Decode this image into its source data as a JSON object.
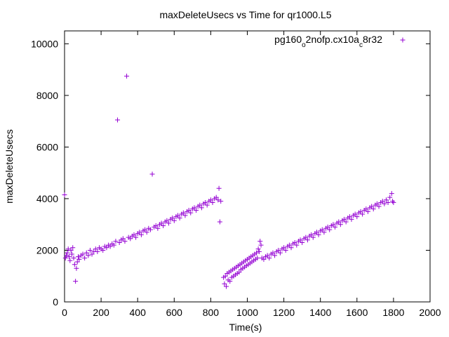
{
  "chart_data": {
    "type": "scatter",
    "title": "maxDeleteUsecs vs Time for qr1000.L5",
    "xlabel": "Time(s)",
    "ylabel": "maxDeleteUsecs",
    "xlim": [
      0,
      2000
    ],
    "ylim": [
      0,
      10500
    ],
    "xticks": [
      0,
      200,
      400,
      600,
      800,
      1000,
      1200,
      1400,
      1600,
      1800,
      2000
    ],
    "yticks": [
      0,
      2000,
      4000,
      6000,
      8000,
      10000
    ],
    "grid": false,
    "legend_position": "top-right",
    "marker": "+",
    "color": "#9400d3",
    "series": [
      {
        "name_parts": {
          "a": "pg160",
          "b": "o",
          "c": "2nofp.cx10a",
          "d": "c",
          "e": "8r32"
        },
        "points": [
          [
            0,
            4150
          ],
          [
            5,
            1700
          ],
          [
            10,
            1800
          ],
          [
            15,
            1900
          ],
          [
            20,
            2050
          ],
          [
            25,
            1750
          ],
          [
            30,
            1600
          ],
          [
            35,
            2000
          ],
          [
            40,
            1850
          ],
          [
            45,
            2100
          ],
          [
            50,
            1700
          ],
          [
            55,
            1450
          ],
          [
            60,
            800
          ],
          [
            65,
            1300
          ],
          [
            70,
            1550
          ],
          [
            75,
            1750
          ],
          [
            80,
            1650
          ],
          [
            90,
            1800
          ],
          [
            100,
            1850
          ],
          [
            110,
            1700
          ],
          [
            120,
            1900
          ],
          [
            130,
            1800
          ],
          [
            140,
            2000
          ],
          [
            150,
            1850
          ],
          [
            160,
            1950
          ],
          [
            170,
            2050
          ],
          [
            180,
            1950
          ],
          [
            190,
            2100
          ],
          [
            200,
            2050
          ],
          [
            210,
            2000
          ],
          [
            220,
            2150
          ],
          [
            230,
            2100
          ],
          [
            240,
            2200
          ],
          [
            250,
            2150
          ],
          [
            260,
            2250
          ],
          [
            270,
            2200
          ],
          [
            280,
            2350
          ],
          [
            290,
            7050
          ],
          [
            300,
            2300
          ],
          [
            310,
            2400
          ],
          [
            320,
            2450
          ],
          [
            330,
            2350
          ],
          [
            340,
            8750
          ],
          [
            350,
            2500
          ],
          [
            360,
            2450
          ],
          [
            370,
            2550
          ],
          [
            380,
            2600
          ],
          [
            390,
            2500
          ],
          [
            400,
            2650
          ],
          [
            410,
            2700
          ],
          [
            420,
            2600
          ],
          [
            430,
            2750
          ],
          [
            440,
            2800
          ],
          [
            450,
            2700
          ],
          [
            460,
            2850
          ],
          [
            470,
            2800
          ],
          [
            480,
            4950
          ],
          [
            490,
            2900
          ],
          [
            500,
            2950
          ],
          [
            510,
            2850
          ],
          [
            520,
            3000
          ],
          [
            530,
            3050
          ],
          [
            540,
            2950
          ],
          [
            550,
            3100
          ],
          [
            560,
            3150
          ],
          [
            570,
            3050
          ],
          [
            580,
            3200
          ],
          [
            590,
            3250
          ],
          [
            600,
            3150
          ],
          [
            610,
            3300
          ],
          [
            620,
            3350
          ],
          [
            630,
            3250
          ],
          [
            640,
            3400
          ],
          [
            650,
            3450
          ],
          [
            660,
            3350
          ],
          [
            670,
            3500
          ],
          [
            680,
            3550
          ],
          [
            690,
            3450
          ],
          [
            700,
            3600
          ],
          [
            710,
            3650
          ],
          [
            720,
            3550
          ],
          [
            730,
            3700
          ],
          [
            740,
            3750
          ],
          [
            750,
            3650
          ],
          [
            760,
            3800
          ],
          [
            770,
            3850
          ],
          [
            780,
            3750
          ],
          [
            790,
            3900
          ],
          [
            800,
            3950
          ],
          [
            810,
            3850
          ],
          [
            820,
            4000
          ],
          [
            830,
            4050
          ],
          [
            840,
            3950
          ],
          [
            845,
            4400
          ],
          [
            850,
            3100
          ],
          [
            855,
            3900
          ],
          [
            870,
            950
          ],
          [
            875,
            700
          ],
          [
            880,
            1000
          ],
          [
            885,
            600
          ],
          [
            890,
            1100
          ],
          [
            895,
            850
          ],
          [
            900,
            1150
          ],
          [
            905,
            800
          ],
          [
            910,
            1200
          ],
          [
            915,
            950
          ],
          [
            920,
            1250
          ],
          [
            925,
            1000
          ],
          [
            930,
            1300
          ],
          [
            935,
            1050
          ],
          [
            940,
            1350
          ],
          [
            945,
            1100
          ],
          [
            950,
            1400
          ],
          [
            955,
            1150
          ],
          [
            960,
            1450
          ],
          [
            965,
            1250
          ],
          [
            970,
            1500
          ],
          [
            975,
            1300
          ],
          [
            980,
            1550
          ],
          [
            985,
            1350
          ],
          [
            990,
            1600
          ],
          [
            995,
            1400
          ],
          [
            1000,
            1650
          ],
          [
            1005,
            1450
          ],
          [
            1010,
            1700
          ],
          [
            1015,
            1500
          ],
          [
            1020,
            1750
          ],
          [
            1025,
            1550
          ],
          [
            1030,
            1800
          ],
          [
            1035,
            1600
          ],
          [
            1040,
            1850
          ],
          [
            1045,
            1650
          ],
          [
            1050,
            1900
          ],
          [
            1055,
            1700
          ],
          [
            1060,
            2050
          ],
          [
            1065,
            1950
          ],
          [
            1070,
            2350
          ],
          [
            1075,
            2200
          ],
          [
            1080,
            1700
          ],
          [
            1090,
            1650
          ],
          [
            1100,
            1750
          ],
          [
            1110,
            1800
          ],
          [
            1120,
            1700
          ],
          [
            1130,
            1850
          ],
          [
            1140,
            1900
          ],
          [
            1150,
            1800
          ],
          [
            1160,
            1950
          ],
          [
            1170,
            2000
          ],
          [
            1180,
            1900
          ],
          [
            1190,
            2050
          ],
          [
            1200,
            2100
          ],
          [
            1210,
            2000
          ],
          [
            1220,
            2150
          ],
          [
            1230,
            2200
          ],
          [
            1240,
            2100
          ],
          [
            1250,
            2250
          ],
          [
            1260,
            2300
          ],
          [
            1270,
            2200
          ],
          [
            1280,
            2350
          ],
          [
            1290,
            2400
          ],
          [
            1300,
            2300
          ],
          [
            1310,
            2450
          ],
          [
            1320,
            2500
          ],
          [
            1330,
            2400
          ],
          [
            1340,
            2550
          ],
          [
            1350,
            2600
          ],
          [
            1360,
            2500
          ],
          [
            1370,
            2650
          ],
          [
            1380,
            2700
          ],
          [
            1390,
            2600
          ],
          [
            1400,
            2750
          ],
          [
            1410,
            2800
          ],
          [
            1420,
            2700
          ],
          [
            1430,
            2850
          ],
          [
            1440,
            2900
          ],
          [
            1450,
            2800
          ],
          [
            1460,
            2950
          ],
          [
            1470,
            3000
          ],
          [
            1480,
            2900
          ],
          [
            1490,
            3050
          ],
          [
            1500,
            3100
          ],
          [
            1510,
            3000
          ],
          [
            1520,
            3150
          ],
          [
            1530,
            3200
          ],
          [
            1540,
            3100
          ],
          [
            1550,
            3250
          ],
          [
            1560,
            3300
          ],
          [
            1570,
            3200
          ],
          [
            1580,
            3350
          ],
          [
            1590,
            3400
          ],
          [
            1600,
            3300
          ],
          [
            1610,
            3450
          ],
          [
            1620,
            3500
          ],
          [
            1630,
            3400
          ],
          [
            1640,
            3550
          ],
          [
            1650,
            3600
          ],
          [
            1660,
            3500
          ],
          [
            1670,
            3650
          ],
          [
            1680,
            3700
          ],
          [
            1690,
            3600
          ],
          [
            1700,
            3750
          ],
          [
            1710,
            3800
          ],
          [
            1720,
            3700
          ],
          [
            1730,
            3850
          ],
          [
            1740,
            3900
          ],
          [
            1750,
            3800
          ],
          [
            1760,
            3950
          ],
          [
            1770,
            3850
          ],
          [
            1780,
            4050
          ],
          [
            1790,
            4200
          ],
          [
            1795,
            3900
          ],
          [
            1800,
            3850
          ]
        ]
      }
    ]
  }
}
